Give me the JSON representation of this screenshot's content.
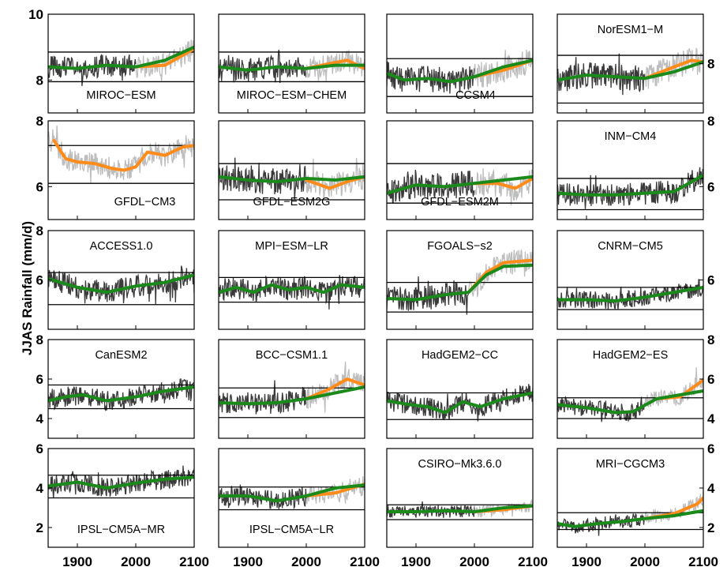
{
  "figure": {
    "ylabel": "JJAS Rainfall (mm/d)",
    "x_ticks": [
      "1900",
      "2000",
      "2100"
    ]
  },
  "colors": {
    "raw_dark": "#3a3a3a",
    "raw_light": "#bdbdbd",
    "smooth_green": "#1a8a1a",
    "smooth_orange": "#ff8c1a",
    "threshold": "#000000"
  },
  "chart_data": [
    {
      "type": "line",
      "row": 0,
      "col": 0,
      "label": "MIROC−ESM",
      "xlim": [
        1850,
        2100
      ],
      "ylim": [
        7,
        10
      ],
      "y_ticks": [
        8,
        10
      ],
      "y_axis": "left",
      "thresholds": [
        7.95,
        8.85
      ],
      "base": 8.4,
      "noise": 0.35,
      "light_from": 2000,
      "green": [
        [
          1850,
          8.4
        ],
        [
          1900,
          8.35
        ],
        [
          1950,
          8.45
        ],
        [
          2000,
          8.4
        ],
        [
          2050,
          8.6
        ],
        [
          2100,
          9.0
        ]
      ],
      "orange": [
        [
          2000,
          8.4
        ],
        [
          2050,
          8.45
        ],
        [
          2100,
          8.95
        ]
      ]
    },
    {
      "type": "line",
      "row": 0,
      "col": 1,
      "label": "MIROC−ESM−CHEM",
      "xlim": [
        1850,
        2100
      ],
      "ylim": [
        7,
        10
      ],
      "y_ticks": [],
      "y_axis": "none",
      "thresholds": [
        7.95,
        8.85
      ],
      "base": 8.4,
      "noise": 0.35,
      "light_from": 2000,
      "green": [
        [
          1850,
          8.4
        ],
        [
          1900,
          8.3
        ],
        [
          1950,
          8.4
        ],
        [
          2000,
          8.35
        ],
        [
          2050,
          8.45
        ],
        [
          2100,
          8.45
        ]
      ],
      "orange": [
        [
          2000,
          8.35
        ],
        [
          2040,
          8.5
        ],
        [
          2070,
          8.6
        ],
        [
          2100,
          8.35
        ]
      ]
    },
    {
      "type": "line",
      "row": 0,
      "col": 2,
      "label": "CCSM4",
      "xlim": [
        1850,
        2100
      ],
      "ylim": [
        7,
        10
      ],
      "y_ticks": [],
      "y_axis": "none",
      "thresholds": [
        7.5,
        8.65
      ],
      "base": 8.15,
      "noise": 0.4,
      "light_from": 2000,
      "green": [
        [
          1850,
          8.2
        ],
        [
          1880,
          8.0
        ],
        [
          1920,
          8.05
        ],
        [
          1960,
          7.95
        ],
        [
          2000,
          8.1
        ],
        [
          2050,
          8.4
        ],
        [
          2100,
          8.6
        ]
      ],
      "orange": [
        [
          2000,
          8.1
        ],
        [
          2050,
          8.3
        ],
        [
          2100,
          8.6
        ]
      ]
    },
    {
      "type": "line",
      "row": 0,
      "col": 3,
      "label": "NorESM1−M",
      "xlim": [
        1850,
        2100
      ],
      "ylim": [
        6.5,
        9.5
      ],
      "y_ticks": [
        8
      ],
      "y_axis": "right",
      "thresholds": [
        6.8,
        8.25
      ],
      "base": 7.6,
      "noise": 0.4,
      "light_from": 2000,
      "green": [
        [
          1850,
          7.5
        ],
        [
          1900,
          7.65
        ],
        [
          1950,
          7.6
        ],
        [
          2000,
          7.55
        ],
        [
          2050,
          7.75
        ],
        [
          2100,
          8.05
        ]
      ],
      "orange": [
        [
          2000,
          7.55
        ],
        [
          2050,
          7.9
        ],
        [
          2080,
          8.1
        ],
        [
          2100,
          8.05
        ]
      ]
    },
    {
      "type": "line",
      "row": 1,
      "col": 0,
      "label": "GFDL−CM3",
      "xlim": [
        1850,
        2100
      ],
      "ylim": [
        5,
        8
      ],
      "y_ticks": [
        6,
        8
      ],
      "y_axis": "left",
      "thresholds": [
        6.1,
        7.25
      ],
      "base": 6.85,
      "noise": 0.35,
      "light_from": 1850,
      "green": [],
      "orange": [
        [
          1860,
          7.4
        ],
        [
          1880,
          6.85
        ],
        [
          1900,
          6.75
        ],
        [
          1930,
          6.7
        ],
        [
          1960,
          6.55
        ],
        [
          1980,
          6.5
        ],
        [
          2000,
          6.6
        ],
        [
          2020,
          7.05
        ],
        [
          2050,
          6.95
        ],
        [
          2080,
          7.2
        ],
        [
          2100,
          7.25
        ]
      ]
    },
    {
      "type": "line",
      "row": 1,
      "col": 1,
      "label": "GFDL−ESM2G",
      "xlim": [
        1850,
        2100
      ],
      "ylim": [
        5,
        8
      ],
      "y_ticks": [],
      "y_axis": "none",
      "thresholds": [
        5.6,
        6.7
      ],
      "base": 6.2,
      "noise": 0.4,
      "light_from": 2000,
      "green": [
        [
          1850,
          6.3
        ],
        [
          1900,
          6.2
        ],
        [
          1950,
          6.15
        ],
        [
          2000,
          6.25
        ],
        [
          2050,
          6.2
        ],
        [
          2100,
          6.3
        ]
      ],
      "orange": [
        [
          2000,
          6.2
        ],
        [
          2040,
          5.95
        ],
        [
          2070,
          6.15
        ],
        [
          2100,
          6.3
        ]
      ]
    },
    {
      "type": "line",
      "row": 1,
      "col": 2,
      "label": "GFDL−ESM2M",
      "xlim": [
        1850,
        2100
      ],
      "ylim": [
        5,
        8
      ],
      "y_ticks": [],
      "y_axis": "none",
      "thresholds": [
        5.5,
        6.7
      ],
      "base": 6.1,
      "noise": 0.4,
      "light_from": 2000,
      "green": [
        [
          1850,
          5.8
        ],
        [
          1900,
          6.05
        ],
        [
          1950,
          6.0
        ],
        [
          2000,
          6.1
        ],
        [
          2050,
          6.2
        ],
        [
          2100,
          6.3
        ]
      ],
      "orange": [
        [
          2000,
          6.1
        ],
        [
          2040,
          6.1
        ],
        [
          2070,
          5.95
        ],
        [
          2100,
          6.25
        ]
      ]
    },
    {
      "type": "line",
      "row": 1,
      "col": 3,
      "label": "INM−CM4",
      "xlim": [
        1850,
        2100
      ],
      "ylim": [
        5,
        8
      ],
      "y_ticks": [
        6,
        8
      ],
      "y_axis": "right",
      "thresholds": [
        5.3,
        6.25
      ],
      "base": 5.8,
      "noise": 0.35,
      "light_from": 2100,
      "green": [
        [
          1850,
          5.8
        ],
        [
          1900,
          5.75
        ],
        [
          1950,
          5.75
        ],
        [
          2000,
          5.8
        ],
        [
          2050,
          5.85
        ],
        [
          2100,
          6.35
        ]
      ],
      "orange": []
    },
    {
      "type": "line",
      "row": 2,
      "col": 0,
      "label": "ACCESS1.0",
      "xlim": [
        1850,
        2100
      ],
      "ylim": [
        4,
        8
      ],
      "y_ticks": [
        6,
        8
      ],
      "y_axis": "left",
      "thresholds": [
        5.0,
        6.3
      ],
      "base": 5.7,
      "noise": 0.45,
      "light_from": 2100,
      "green": [
        [
          1850,
          6.05
        ],
        [
          1900,
          5.7
        ],
        [
          1950,
          5.5
        ],
        [
          2000,
          5.75
        ],
        [
          2050,
          5.9
        ],
        [
          2100,
          6.2
        ]
      ],
      "orange": []
    },
    {
      "type": "line",
      "row": 2,
      "col": 1,
      "label": "MPI−ESM−LR",
      "xlim": [
        1850,
        2100
      ],
      "ylim": [
        4,
        8
      ],
      "y_ticks": [],
      "y_axis": "none",
      "thresholds": [
        5.1,
        6.1
      ],
      "base": 5.6,
      "noise": 0.45,
      "light_from": 2100,
      "green": [
        [
          1850,
          5.5
        ],
        [
          1880,
          5.7
        ],
        [
          1910,
          5.5
        ],
        [
          1940,
          5.8
        ],
        [
          1970,
          5.6
        ],
        [
          2000,
          5.7
        ],
        [
          2030,
          5.5
        ],
        [
          2060,
          5.8
        ],
        [
          2100,
          5.7
        ]
      ],
      "orange": []
    },
    {
      "type": "line",
      "row": 2,
      "col": 2,
      "label": "FGOALS−s2",
      "xlim": [
        1850,
        2100
      ],
      "ylim": [
        4,
        8
      ],
      "y_ticks": [],
      "y_axis": "none",
      "thresholds": [
        4.7,
        5.9
      ],
      "base": 5.3,
      "noise": 0.5,
      "light_from": 1990,
      "green": [
        [
          1850,
          5.25
        ],
        [
          1900,
          5.2
        ],
        [
          1950,
          5.4
        ],
        [
          1990,
          5.5
        ],
        [
          2020,
          6.2
        ],
        [
          2050,
          6.55
        ],
        [
          2100,
          6.6
        ]
      ],
      "orange": [
        [
          1990,
          5.5
        ],
        [
          2020,
          6.3
        ],
        [
          2050,
          6.7
        ],
        [
          2100,
          6.8
        ]
      ]
    },
    {
      "type": "line",
      "row": 2,
      "col": 3,
      "label": "CNRM−CM5",
      "xlim": [
        1850,
        2100
      ],
      "ylim": [
        4,
        8
      ],
      "y_ticks": [
        6
      ],
      "y_axis": "right",
      "thresholds": [
        4.8,
        5.7
      ],
      "base": 5.2,
      "noise": 0.35,
      "light_from": 2100,
      "green": [
        [
          1850,
          5.2
        ],
        [
          1900,
          5.2
        ],
        [
          1950,
          5.15
        ],
        [
          2000,
          5.3
        ],
        [
          2050,
          5.5
        ],
        [
          2100,
          5.7
        ]
      ],
      "orange": []
    },
    {
      "type": "line",
      "row": 3,
      "col": 0,
      "label": "CanESM2",
      "xlim": [
        1850,
        2100
      ],
      "ylim": [
        3,
        8
      ],
      "y_ticks": [
        4,
        6,
        8
      ],
      "y_axis": "left",
      "thresholds": [
        4.5,
        5.7
      ],
      "base": 5.1,
      "noise": 0.5,
      "light_from": 2100,
      "green": [
        [
          1850,
          4.9
        ],
        [
          1880,
          5.1
        ],
        [
          1910,
          5.2
        ],
        [
          1950,
          4.9
        ],
        [
          2000,
          5.1
        ],
        [
          2050,
          5.4
        ],
        [
          2100,
          5.6
        ]
      ],
      "orange": []
    },
    {
      "type": "line",
      "row": 3,
      "col": 1,
      "label": "BCC−CSM1.1",
      "xlim": [
        1850,
        2100
      ],
      "ylim": [
        3,
        8
      ],
      "y_ticks": [],
      "y_axis": "none",
      "thresholds": [
        4.05,
        5.55
      ],
      "base": 4.85,
      "noise": 0.55,
      "light_from": 2000,
      "green": [
        [
          1850,
          4.8
        ],
        [
          1900,
          4.75
        ],
        [
          1950,
          4.8
        ],
        [
          2000,
          5.0
        ],
        [
          2050,
          5.3
        ],
        [
          2100,
          5.6
        ]
      ],
      "orange": [
        [
          2000,
          5.0
        ],
        [
          2040,
          5.5
        ],
        [
          2070,
          6.0
        ],
        [
          2100,
          5.7
        ]
      ]
    },
    {
      "type": "line",
      "row": 3,
      "col": 2,
      "label": "HadGEM2−CC",
      "xlim": [
        1850,
        2100
      ],
      "ylim": [
        3,
        8
      ],
      "y_ticks": [],
      "y_axis": "none",
      "thresholds": [
        3.95,
        5.3
      ],
      "base": 4.6,
      "noise": 0.5,
      "light_from": 2100,
      "green": [
        [
          1850,
          4.9
        ],
        [
          1890,
          4.7
        ],
        [
          1920,
          4.6
        ],
        [
          1950,
          4.3
        ],
        [
          1980,
          4.85
        ],
        [
          2010,
          4.6
        ],
        [
          2050,
          5.0
        ],
        [
          2100,
          5.3
        ]
      ],
      "orange": []
    },
    {
      "type": "line",
      "row": 3,
      "col": 3,
      "label": "HadGEM2−ES",
      "xlim": [
        1850,
        2100
      ],
      "ylim": [
        3,
        8
      ],
      "y_ticks": [
        4,
        6,
        8
      ],
      "y_axis": "right",
      "thresholds": [
        4.0,
        5.05
      ],
      "base": 4.6,
      "noise": 0.45,
      "light_from": 2000,
      "green": [
        [
          1850,
          4.7
        ],
        [
          1900,
          4.55
        ],
        [
          1950,
          4.3
        ],
        [
          1980,
          4.35
        ],
        [
          2020,
          5.0
        ],
        [
          2060,
          5.2
        ],
        [
          2100,
          5.4
        ]
      ],
      "orange": [
        [
          2020,
          5.0
        ],
        [
          2060,
          5.1
        ],
        [
          2100,
          5.95
        ]
      ]
    },
    {
      "type": "line",
      "row": 4,
      "col": 0,
      "label": "IPSL−CM5A−MR",
      "xlim": [
        1850,
        2100
      ],
      "ylim": [
        1,
        6
      ],
      "y_ticks": [
        2,
        4,
        6
      ],
      "y_axis": "left",
      "thresholds": [
        3.5,
        4.65
      ],
      "base": 4.1,
      "noise": 0.5,
      "light_from": 2100,
      "green": [
        [
          1850,
          4.1
        ],
        [
          1900,
          4.3
        ],
        [
          1950,
          4.0
        ],
        [
          2000,
          4.25
        ],
        [
          2050,
          4.45
        ],
        [
          2100,
          4.55
        ]
      ],
      "orange": []
    },
    {
      "type": "line",
      "row": 4,
      "col": 1,
      "label": "IPSL−CM5A−LR",
      "xlim": [
        1850,
        2100
      ],
      "ylim": [
        1,
        6
      ],
      "y_ticks": [],
      "y_axis": "none",
      "thresholds": [
        2.9,
        4.05
      ],
      "base": 3.5,
      "noise": 0.5,
      "light_from": 2000,
      "green": [
        [
          1850,
          3.6
        ],
        [
          1900,
          3.6
        ],
        [
          1950,
          3.35
        ],
        [
          2000,
          3.6
        ],
        [
          2050,
          4.0
        ],
        [
          2100,
          4.15
        ]
      ],
      "orange": [
        [
          2000,
          3.6
        ],
        [
          2050,
          3.75
        ],
        [
          2100,
          4.2
        ]
      ]
    },
    {
      "type": "line",
      "row": 4,
      "col": 2,
      "label": "CSIRO−Mk3.6.0",
      "xlim": [
        1850,
        2100
      ],
      "ylim": [
        1,
        6
      ],
      "y_ticks": [],
      "y_axis": "none",
      "thresholds": [
        2.4,
        3.15
      ],
      "base": 2.85,
      "noise": 0.3,
      "light_from": 2000,
      "green": [
        [
          1850,
          2.8
        ],
        [
          1900,
          2.8
        ],
        [
          1950,
          2.85
        ],
        [
          2000,
          2.8
        ],
        [
          2050,
          3.0
        ],
        [
          2100,
          3.1
        ]
      ],
      "orange": [
        [
          2000,
          2.8
        ],
        [
          2050,
          2.9
        ],
        [
          2100,
          3.1
        ]
      ]
    },
    {
      "type": "line",
      "row": 4,
      "col": 3,
      "label": "MRI−CGCM3",
      "xlim": [
        1850,
        2100
      ],
      "ylim": [
        1,
        6
      ],
      "y_ticks": [
        2,
        4,
        6
      ],
      "y_axis": "right",
      "thresholds": [
        1.9,
        2.75
      ],
      "base": 2.3,
      "noise": 0.35,
      "light_from": 2000,
      "green": [
        [
          1850,
          2.2
        ],
        [
          1880,
          2.05
        ],
        [
          1920,
          2.2
        ],
        [
          1960,
          2.3
        ],
        [
          2000,
          2.45
        ],
        [
          2050,
          2.6
        ],
        [
          2100,
          2.85
        ]
      ],
      "orange": [
        [
          2000,
          2.45
        ],
        [
          2050,
          2.7
        ],
        [
          2090,
          3.2
        ],
        [
          2100,
          3.5
        ]
      ]
    }
  ]
}
